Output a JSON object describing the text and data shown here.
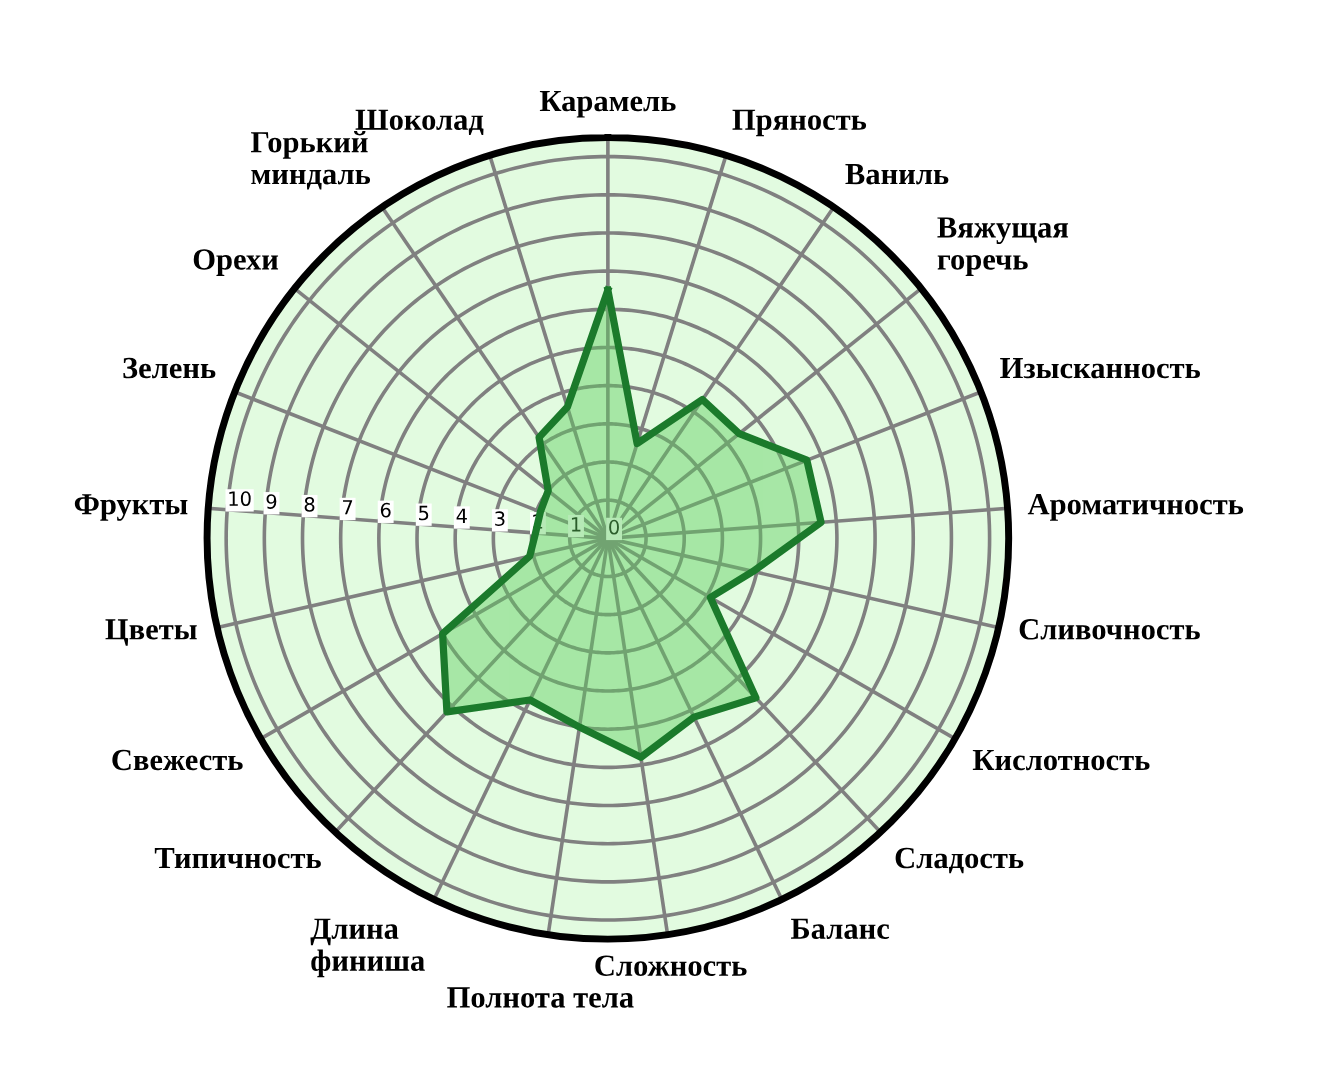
{
  "chart_data": {
    "type": "radar",
    "categories": [
      "Карамель",
      "Пряность",
      "Ваниль",
      "Вяжущая\nгоречь",
      "Изысканность",
      "Ароматичность",
      "Сливочность",
      "Кислотность",
      "Сладость",
      "Баланс",
      "Сложность",
      "Полнота тела",
      "Длина\nфиниша",
      "Типичность",
      "Свежесть",
      "Цветы",
      "Фрукты",
      "Зелень",
      "Орехи",
      "Горький\nминдаль",
      "Шоколад"
    ],
    "series": [
      {
        "color": "#1b7a2b",
        "values": [
          6.5,
          2.6,
          4.4,
          4.4,
          5.6,
          5.6,
          3.9,
          3.1,
          5.7,
          5.2,
          5.8,
          5.0,
          4.7,
          6.2,
          5.0,
          2.1,
          1.9,
          1.9,
          2.0,
          3.2,
          3.6
        ]
      }
    ],
    "ylim": [
      0,
      10.5
    ],
    "yticks": [
      0,
      1,
      2,
      3,
      4,
      5,
      6,
      7,
      8,
      9,
      10
    ],
    "grid": true,
    "marker": "none",
    "line_style": "solid"
  }
}
